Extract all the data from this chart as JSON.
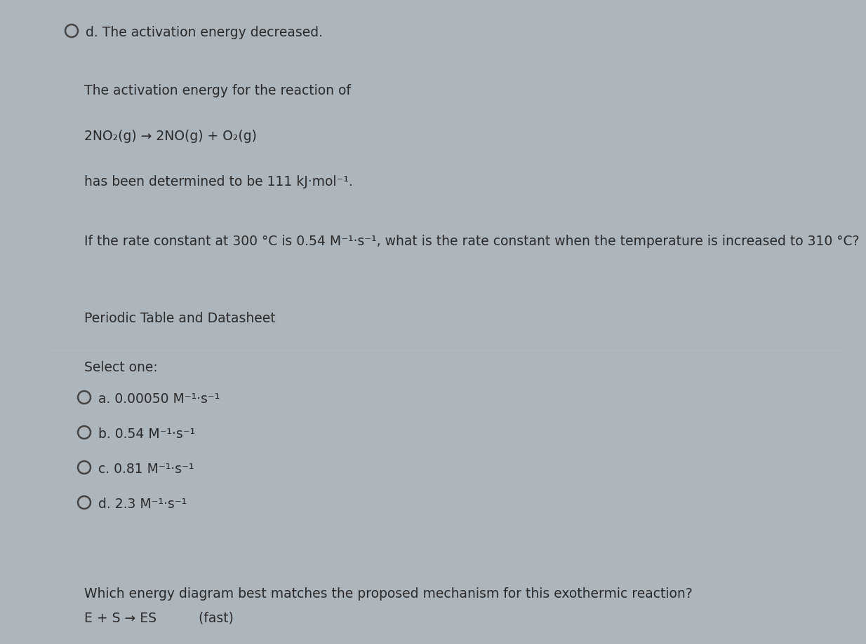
{
  "fig_width": 12.0,
  "fig_height": 9.0,
  "dpi": 100,
  "bg_outer": "#adb5bd",
  "bg_top_strip": "#c2c8ce",
  "bg_main_card": "#d0d4d8",
  "bg_bottom_card": "#c8cdd2",
  "left_bar_color": "#8a9099",
  "text_color": "#2a2a2a",
  "top_option_text": "d. The activation energy decreased.",
  "question_line1": "The activation energy for the reaction of",
  "reaction_line": "2NO₂(g) → 2NO(g) + O₂(g)",
  "question_line2": "has been determined to be 111 kJ·mol⁻¹.",
  "question_line3": "If the rate constant at 300 °C is 0.54 M⁻¹·s⁻¹, what is the rate constant when the temperature is increased to 310 °C?",
  "link_text": "Periodic Table and Datasheet",
  "select_text": "Select one:",
  "options": [
    "a. 0.00050 M⁻¹·s⁻¹",
    "b. 0.54 M⁻¹·s⁻¹",
    "c. 0.81 M⁻¹·s⁻¹",
    "d. 2.3 M⁻¹·s⁻¹"
  ],
  "bottom_q": "Which energy diagram best matches the proposed mechanism for this exothermic reaction?",
  "bottom_reaction": "E + S → ES          (fast)"
}
